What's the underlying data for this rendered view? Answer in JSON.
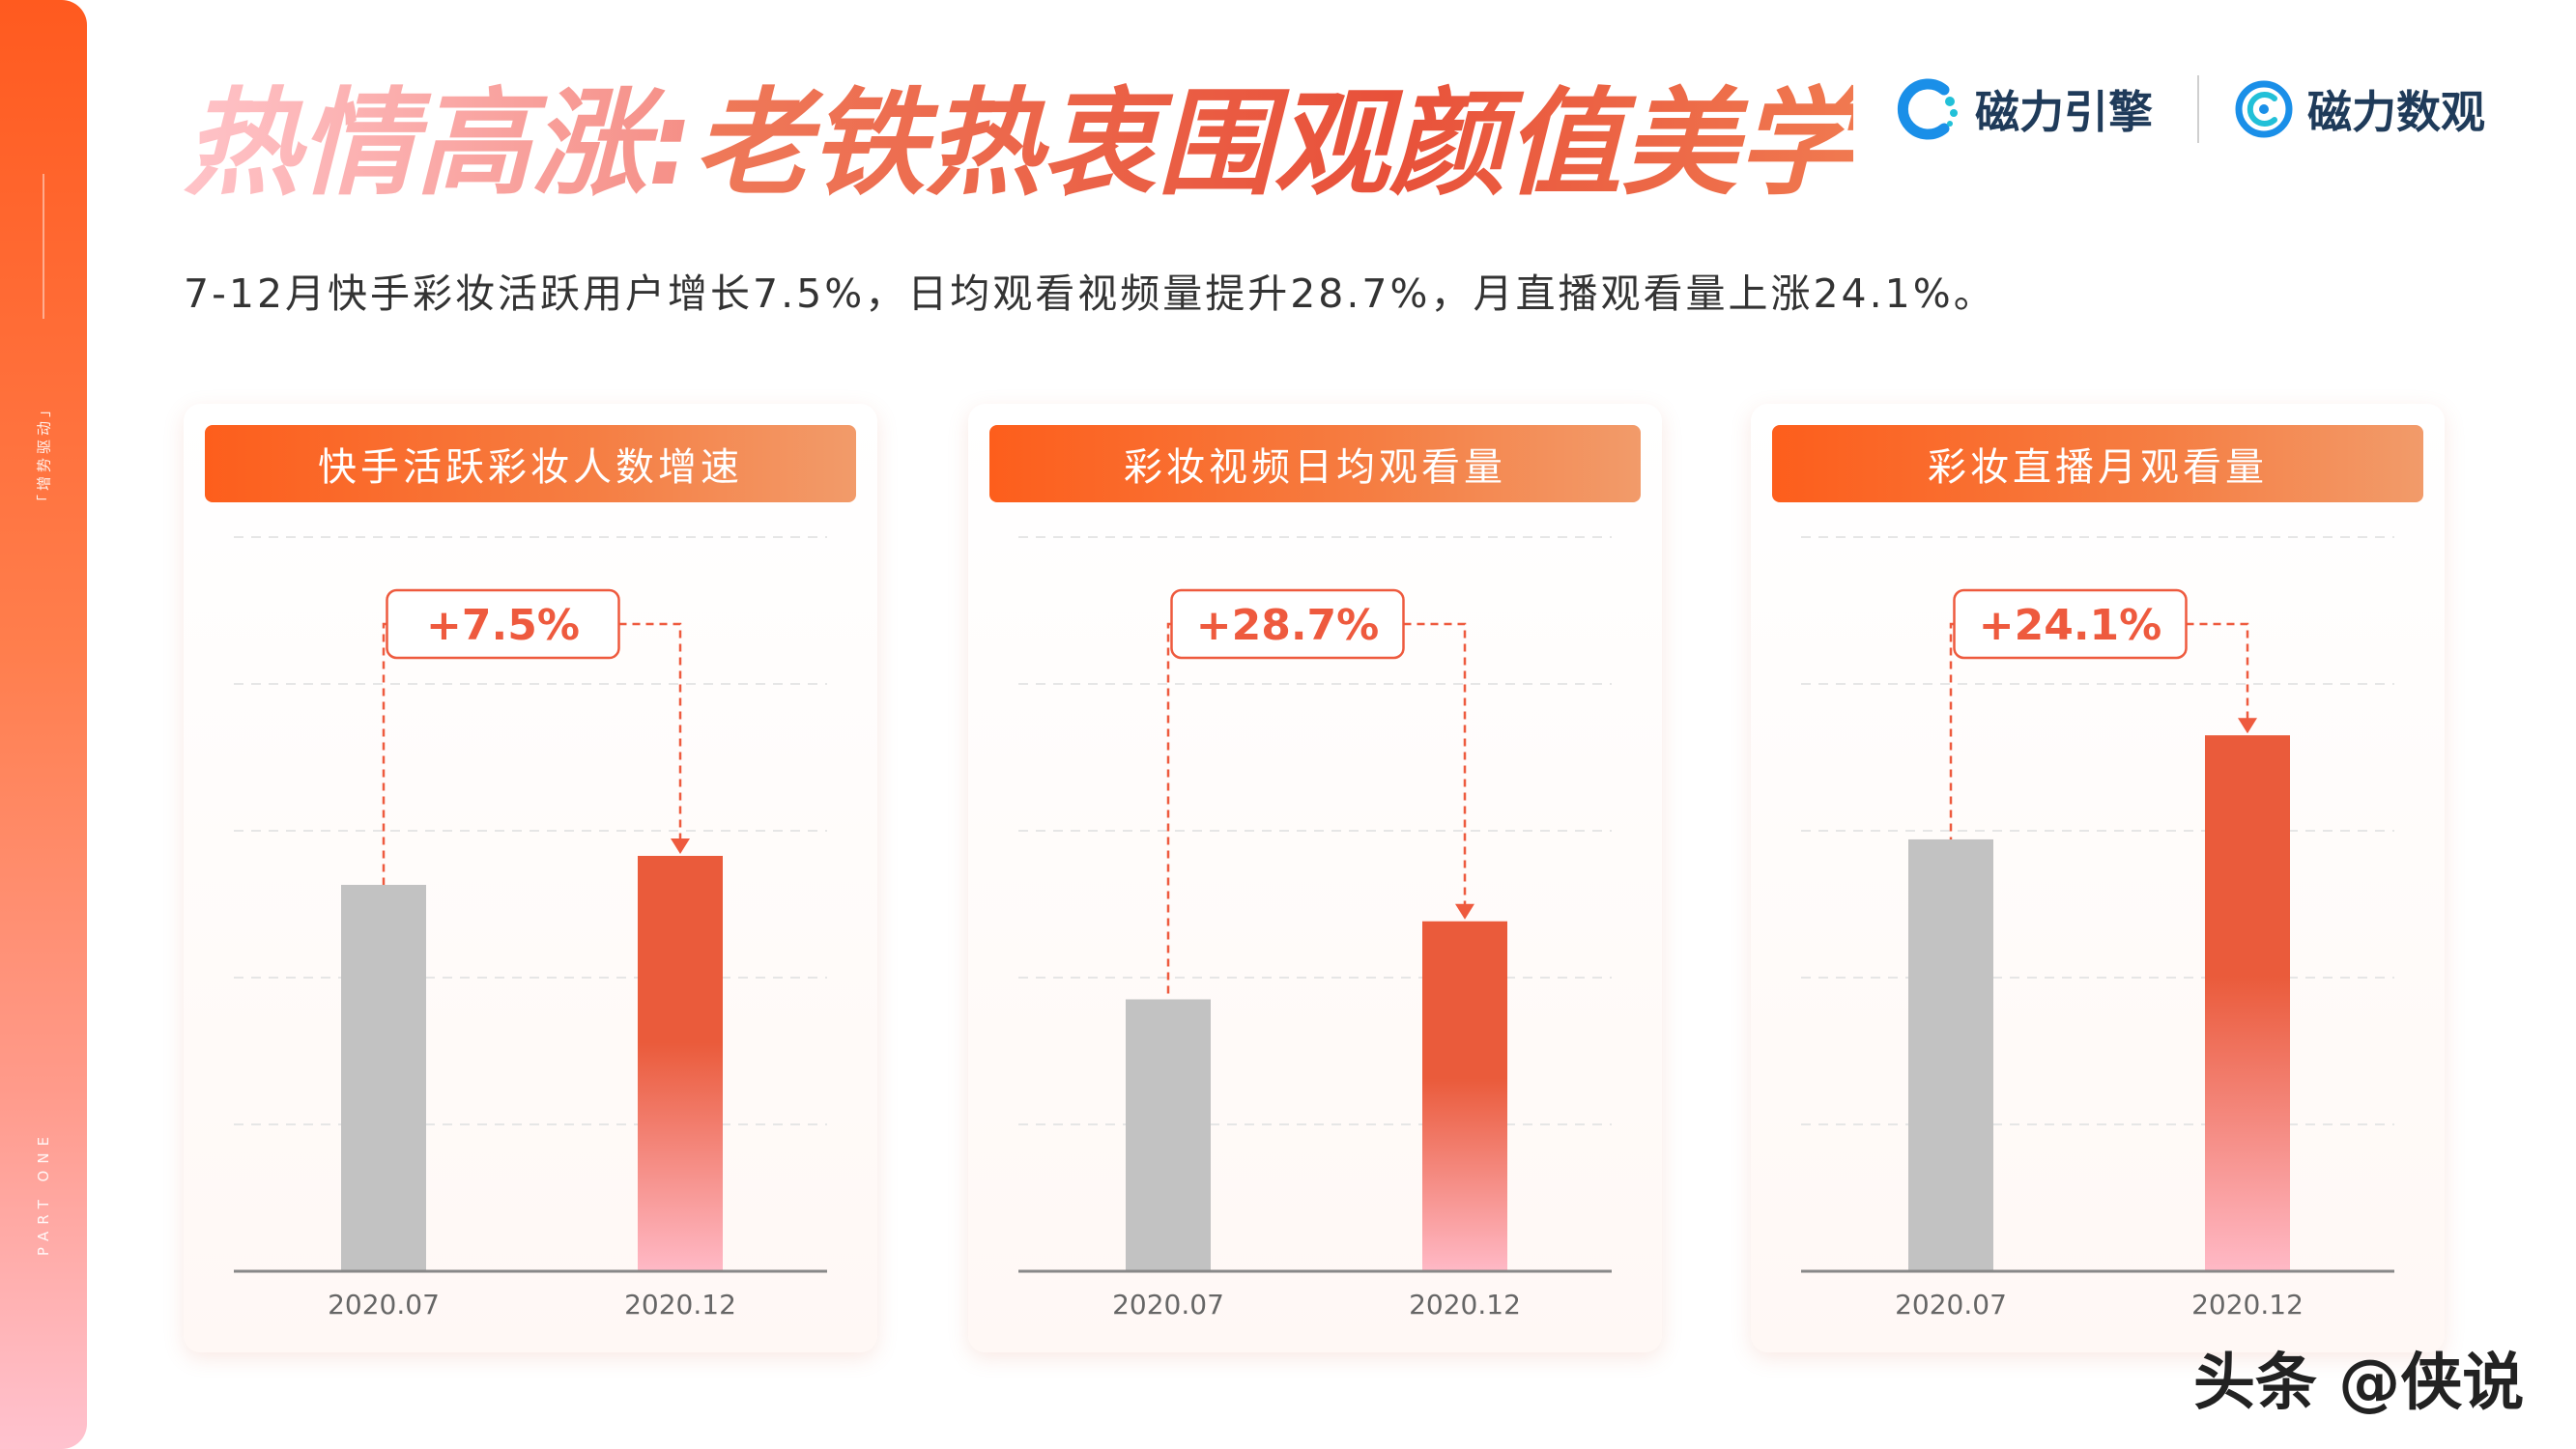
{
  "page": {
    "title_part1": "热情高涨:",
    "title_part2": "老铁热衷围观颜值美学",
    "subtitle": "7-12月快手彩妆活跃用户增长7.5%，日均观看视频量提升28.7%，月直播观看量上涨24.1%。",
    "side_tag": "「增势驱动」",
    "side_part": "PART ONE",
    "watermark": "头条 @侠说"
  },
  "brands": [
    {
      "name": "磁力引擎",
      "icon": "cili-engine-logo-icon",
      "color": "#1a8fe8"
    },
    {
      "name": "磁力数观",
      "icon": "cili-shuguan-logo-icon",
      "color": "#1a8fe8"
    }
  ],
  "colors": {
    "accent": "#ee5a3e",
    "bar_base": "#c2c2c2",
    "bar_highlight_top": "#ea5b3b",
    "bar_highlight_bottom": "#ffb9c6",
    "header_left": "#fd5e1c",
    "header_right": "#f29b6a"
  },
  "chart_data": [
    {
      "type": "bar",
      "title": "快手活跃彩妆人数增速",
      "categories": [
        "2020.07",
        "2020.12"
      ],
      "values": [
        100,
        107.5
      ],
      "change_label": "+7.5%",
      "ylim": [
        0,
        190
      ],
      "grid": true
    },
    {
      "type": "bar",
      "title": "彩妆视频日均观看量",
      "categories": [
        "2020.07",
        "2020.12"
      ],
      "values": [
        100,
        128.7
      ],
      "change_label": "+28.7%",
      "ylim": [
        0,
        270
      ],
      "grid": true
    },
    {
      "type": "bar",
      "title": "彩妆直播月观看量",
      "categories": [
        "2020.07",
        "2020.12"
      ],
      "values": [
        100,
        124.1
      ],
      "change_label": "+24.1%",
      "ylim": [
        0,
        170
      ],
      "grid": true
    }
  ]
}
